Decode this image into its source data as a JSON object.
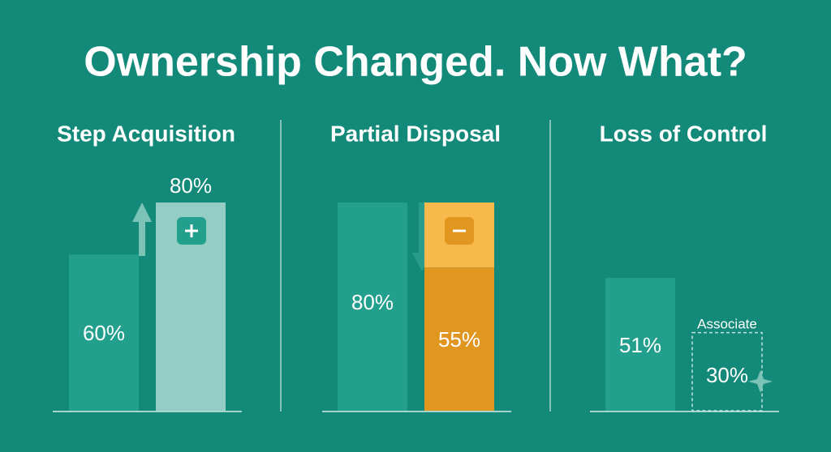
{
  "title": "Ownership Changed. Now What?",
  "chart_data": [
    {
      "type": "bar",
      "title": "Step Acquisition",
      "values": [
        60,
        80
      ],
      "value_labels": [
        "60%",
        "80%"
      ],
      "colors": [
        "#23a08d",
        "#93cdc3"
      ],
      "ylim": [
        0,
        80
      ]
    },
    {
      "type": "bar",
      "title": "Partial Disposal",
      "values": [
        80,
        55
      ],
      "value_labels": [
        "80%",
        "55%"
      ],
      "colors": [
        "#23a08d",
        "#e0961f"
      ],
      "segment_color": "#f8b94c",
      "ylim": [
        0,
        80
      ]
    },
    {
      "type": "bar",
      "title": "Loss of Control",
      "values": [
        51,
        30
      ],
      "value_labels": [
        "51%",
        "30%"
      ],
      "colors": [
        "#23a08d",
        "#bfe3dc"
      ],
      "bar_styles": [
        "solid",
        "dashed"
      ],
      "annotation": "Associate",
      "ylim": [
        0,
        80
      ]
    }
  ]
}
